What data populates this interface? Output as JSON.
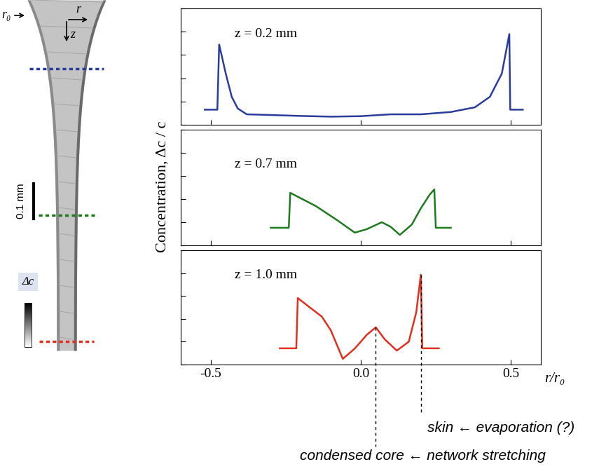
{
  "chart_data": [
    {
      "type": "line",
      "title": "z = 0.2 mm",
      "color": "#2b3d9c",
      "tick_labels": false,
      "x": [
        -0.52,
        -0.478,
        -0.472,
        -0.45,
        -0.43,
        -0.41,
        -0.38,
        -0.3,
        -0.2,
        -0.1,
        0.0,
        0.1,
        0.2,
        0.3,
        0.38,
        0.43,
        0.47,
        0.495,
        0.498,
        0.54
      ],
      "values": [
        0.65,
        0.65,
        3.45,
        2.2,
        1.2,
        0.7,
        0.45,
        0.42,
        0.38,
        0.35,
        0.37,
        0.45,
        0.45,
        0.55,
        0.75,
        1.2,
        2.2,
        3.9,
        0.65,
        0.65
      ],
      "xlim": [
        -0.6,
        0.6
      ],
      "xticks": [
        -0.5,
        0.0,
        0.5
      ],
      "ylim": [
        0,
        5
      ],
      "yticks": [
        0,
        1,
        2,
        3,
        4,
        5
      ]
    },
    {
      "type": "line",
      "title": "z = 0.7 mm",
      "color": "#1f7a1f",
      "tick_labels": false,
      "x": [
        -0.3,
        -0.24,
        -0.235,
        -0.15,
        -0.08,
        -0.02,
        0.02,
        0.07,
        0.1,
        0.13,
        0.17,
        0.2,
        0.23,
        0.245,
        0.25,
        0.3
      ],
      "values": [
        0.76,
        0.76,
        2.27,
        1.7,
        1.1,
        0.55,
        0.7,
        1.0,
        0.8,
        0.45,
        0.9,
        1.6,
        2.2,
        2.42,
        0.76,
        0.76
      ],
      "xlim": [
        -0.6,
        0.6
      ],
      "xticks": [
        -0.5,
        0.0,
        0.5
      ],
      "ylim": [
        0,
        5
      ],
      "yticks": [
        0,
        1,
        2,
        3,
        4,
        5
      ]
    },
    {
      "type": "line",
      "title": "z = 1.0 mm",
      "color": "#e0301e",
      "tick_labels": "x",
      "xlabel": "r/r₀",
      "x": [
        -0.27,
        -0.215,
        -0.21,
        -0.17,
        -0.13,
        -0.1,
        -0.06,
        -0.02,
        0.02,
        0.05,
        0.08,
        0.12,
        0.16,
        0.185,
        0.2,
        0.205,
        0.26
      ],
      "values": [
        0.71,
        0.71,
        2.91,
        2.5,
        2.1,
        1.5,
        0.25,
        0.7,
        1.3,
        1.63,
        1.1,
        0.61,
        1.0,
        2.3,
        3.93,
        0.71,
        0.71
      ],
      "xlim": [
        -0.6,
        0.6
      ],
      "xticks": [
        -0.5,
        0.0,
        0.5
      ],
      "ylim": [
        0,
        5
      ],
      "yticks": [
        0,
        1,
        2,
        3,
        4,
        5
      ],
      "annotations": [
        {
          "text": "condensed core ← network stretching",
          "x": 0.05
        },
        {
          "text": "skin ← evaporation (?)",
          "x": 0.2
        }
      ]
    }
  ],
  "ylabel": "Concentration, Δc / c",
  "image": {
    "r0_label": "r₀",
    "r_label": "r",
    "z_label": "z",
    "scale_bar": "0.1 mm",
    "colorbar_label": "Δc"
  }
}
